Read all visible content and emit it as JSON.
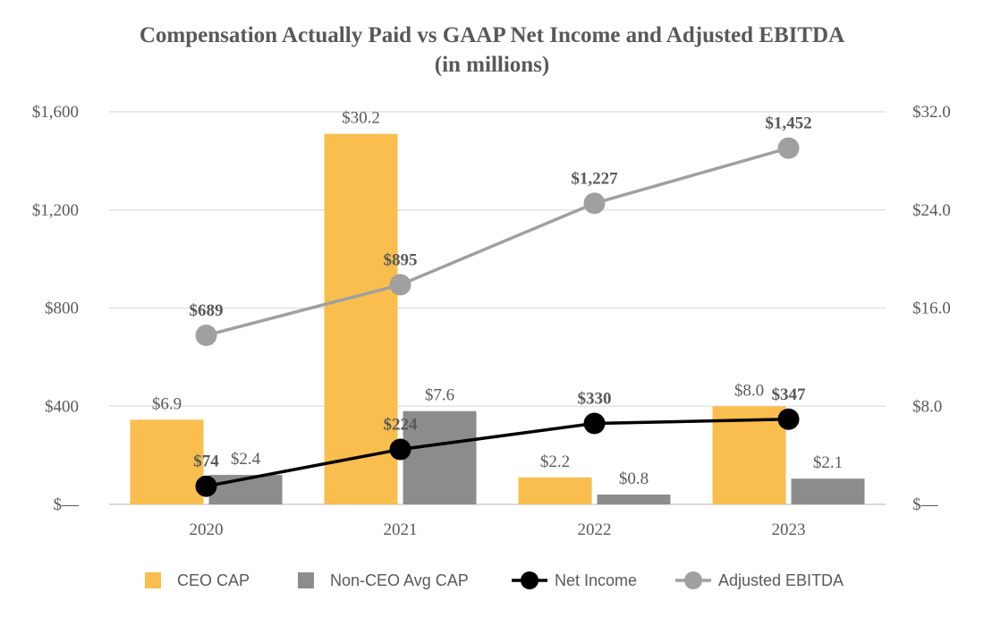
{
  "chart_data": {
    "type": "bar",
    "title": "Compensation Actually Paid vs GAAP Net Income and Adjusted EBITDA",
    "subtitle": "(in millions)",
    "categories": [
      "2020",
      "2021",
      "2022",
      "2023"
    ],
    "xlabel": "",
    "ylabel": "",
    "y_left": {
      "ylim": [
        0,
        1600
      ],
      "ticks": [
        0,
        400,
        800,
        1200,
        1600
      ],
      "tick_labels": [
        "$—",
        "$400",
        "$800",
        "$1,200",
        "$1,600"
      ]
    },
    "y_right": {
      "ylim": [
        0,
        32
      ],
      "ticks": [
        0,
        8,
        16,
        24,
        32
      ],
      "tick_labels": [
        "$—",
        "$8.0",
        "$16.0",
        "$24.0",
        "$32.0"
      ]
    },
    "grid": true,
    "legend_position": "bottom",
    "series": [
      {
        "name": "CEO CAP",
        "kind": "bar",
        "axis": "right",
        "color": "#F9BE4E",
        "values": [
          6.9,
          30.2,
          2.2,
          8.0
        ],
        "labels": [
          "$6.9",
          "$30.2",
          "$2.2",
          "$8.0"
        ]
      },
      {
        "name": "Non-CEO Avg CAP",
        "kind": "bar",
        "axis": "right",
        "color": "#8C8C8C",
        "values": [
          2.4,
          7.6,
          0.8,
          2.1
        ],
        "labels": [
          "$2.4",
          "$7.6",
          "$0.8",
          "$2.1"
        ]
      },
      {
        "name": "Net Income",
        "kind": "line",
        "axis": "left",
        "color": "#000000",
        "values": [
          74,
          224,
          330,
          347
        ],
        "labels": [
          "$74",
          "$224",
          "$330",
          "$347"
        ]
      },
      {
        "name": "Adjusted EBITDA",
        "kind": "line",
        "axis": "left",
        "color": "#A0A0A0",
        "values": [
          689,
          895,
          1227,
          1452
        ],
        "labels": [
          "$689",
          "$895",
          "$1,227",
          "$1,452"
        ]
      }
    ]
  }
}
